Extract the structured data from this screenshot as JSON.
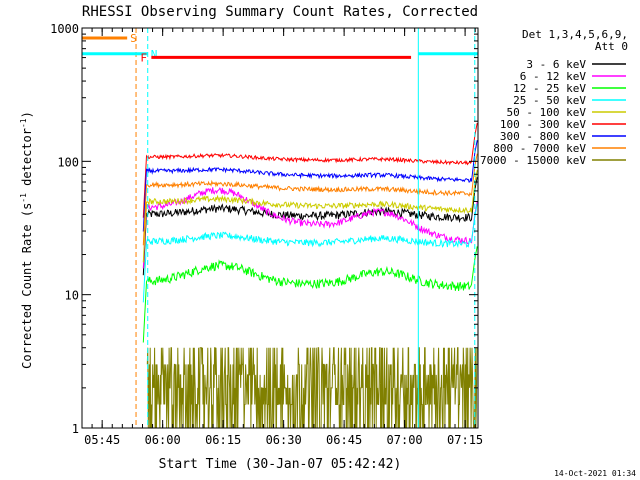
{
  "chart_data": {
    "type": "line",
    "title": "RHESSI Observing Summary Count Rates, Corrected",
    "xlabel": "Start Time (30-Jan-07 05:42:42)",
    "ylabel_main": "Corrected Count Rate (s",
    "ylabel_sup1": "-1",
    "ylabel_mid": " detector",
    "ylabel_sup2": "-1",
    "ylabel_end": ")",
    "y_scale": "log",
    "ylim": [
      1,
      1000
    ],
    "xlim_minutes": [
      -2.7,
      95.5
    ],
    "y_ticks": [
      {
        "value": 1,
        "label": "1"
      },
      {
        "value": 10,
        "label": "10"
      },
      {
        "value": 100,
        "label": "100"
      },
      {
        "value": 1000,
        "label": "1000"
      }
    ],
    "x_ticks": [
      {
        "minute": 2.3,
        "label": "05:45"
      },
      {
        "minute": 17.3,
        "label": "06:00"
      },
      {
        "minute": 32.3,
        "label": "06:15"
      },
      {
        "minute": 47.3,
        "label": "06:30"
      },
      {
        "minute": 62.3,
        "label": "06:45"
      },
      {
        "minute": 77.3,
        "label": "07:00"
      },
      {
        "minute": 92.3,
        "label": "07:15"
      }
    ],
    "legend_title": [
      "Det 1,3,4,5,6,9,",
      "Att 0"
    ],
    "legend_position": "top-right",
    "series": [
      {
        "name": "3 - 6 keV",
        "color": "#000000",
        "start": 40,
        "end": 38,
        "hump": 1.12,
        "noise": 0.07
      },
      {
        "name": "6 - 12 keV",
        "color": "#ff00ff",
        "start": 45,
        "end": 25,
        "hump": 1.55,
        "noise": 0.06
      },
      {
        "name": "12 - 25 keV",
        "color": "#00ff00",
        "start": 12.5,
        "end": 11.5,
        "hump": 1.35,
        "noise": 0.08
      },
      {
        "name": "25 - 50 keV",
        "color": "#00ffff",
        "start": 25,
        "end": 24,
        "hump": 1.12,
        "noise": 0.06
      },
      {
        "name": "50 - 100 keV",
        "color": "#cccc00",
        "start": 50,
        "end": 43,
        "hump": 1.08,
        "noise": 0.05
      },
      {
        "name": "100 - 300 keV",
        "color": "#ff0000",
        "start": 108,
        "end": 97,
        "hump": 1.05,
        "noise": 0.03
      },
      {
        "name": "300 - 800 keV",
        "color": "#0000ff",
        "start": 85,
        "end": 72,
        "hump": 1.06,
        "noise": 0.035
      },
      {
        "name": "800 - 7000 keV",
        "color": "#ff8000",
        "start": 67,
        "end": 57,
        "hump": 1.05,
        "noise": 0.04
      },
      {
        "name": "7000 - 15000 keV",
        "color": "#808000",
        "start": 3,
        "end": 3,
        "hump": 1.0,
        "noise": 0.5
      }
    ],
    "obs_bars": [
      {
        "label": "S",
        "color": "#ff8000",
        "start": -2.7,
        "end": 8.5,
        "y": 1.0
      },
      {
        "label": "N",
        "color": "#00ffff",
        "start": -2.7,
        "end": 13.6,
        "y": 0.65
      },
      {
        "label": "F",
        "color": "#ff0000",
        "start": 14.5,
        "end": 78.9,
        "y": 0.57
      },
      {
        "label": "",
        "color": "#00ffff",
        "start": 80.7,
        "end": 95.5,
        "y": 0.65
      }
    ],
    "vlines": [
      {
        "minute": -2.7,
        "color": "#00ffff",
        "dash": false
      },
      {
        "minute": 10.7,
        "color": "#ff8000",
        "dash": true
      },
      {
        "minute": 13.6,
        "color": "#00ffff",
        "dash": true
      },
      {
        "minute": 80.7,
        "color": "#00ffff",
        "dash": false
      },
      {
        "minute": 94.7,
        "color": "#00ffff",
        "dash": true
      }
    ],
    "data_start_minute": 12.5,
    "data_end_minute": 95.3,
    "timestamp": "14-Oct-2021 01:34"
  }
}
